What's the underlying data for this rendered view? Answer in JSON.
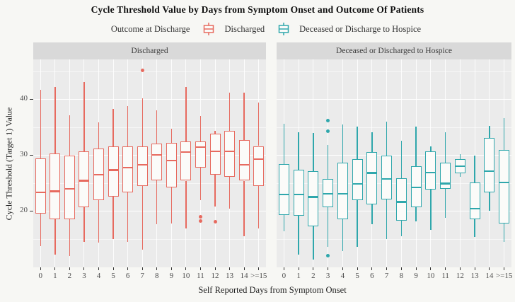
{
  "chart_data": {
    "type": "boxplot",
    "title": "Cycle Threshold Value by Days from Symptom Onset and Outcome Of Patients",
    "legend_title": "Outcome at Discharge",
    "legend_position": "top",
    "legend": [
      {
        "label": "Discharged",
        "color": "#E76A5F"
      },
      {
        "label": "Deceased or Discharge to Hospice",
        "color": "#2FA7AC"
      }
    ],
    "xlabel": "Self Reported Days from Symptom Onset",
    "ylabel": "Cycle Threshold (Target 1) Value",
    "categories": [
      "0",
      "1",
      "2",
      "3",
      "4",
      "5",
      "6",
      "7",
      "8",
      "9",
      "10",
      "11",
      "12",
      "13",
      "14",
      ">=15"
    ],
    "y_ticks": [
      20,
      30,
      40
    ],
    "y_minor_ticks": [
      15,
      25,
      35,
      45
    ],
    "ylim": [
      9.9,
      47.1
    ],
    "grid": true,
    "colors": {
      "figure_bg": "#F7F7F4",
      "panel_bg": "#EBEBEB",
      "strip_bg": "#D9D9D9",
      "box_fill": "#FBFBF9",
      "tick": "#333333",
      "tick_label": "#4d4d4d"
    },
    "facets": [
      {
        "label": "Discharged",
        "color": "#E76A5F",
        "boxes": [
          {
            "min": 13.7,
            "q1": 19.5,
            "med": 23.3,
            "q3": 29.4,
            "max": 41.6,
            "outliers": []
          },
          {
            "min": 12.2,
            "q1": 18.5,
            "med": 23.5,
            "q3": 30.3,
            "max": 42.2,
            "outliers": []
          },
          {
            "min": 11.9,
            "q1": 18.5,
            "med": 23.9,
            "q3": 29.9,
            "max": 37.1,
            "outliers": []
          },
          {
            "min": 14.5,
            "q1": 20.6,
            "med": 25.4,
            "q3": 30.7,
            "max": 43.0,
            "outliers": []
          },
          {
            "min": 14.3,
            "q1": 21.9,
            "med": 26.5,
            "q3": 31.1,
            "max": 35.8,
            "outliers": []
          },
          {
            "min": 14.9,
            "q1": 22.5,
            "med": 27.3,
            "q3": 31.5,
            "max": 38.3,
            "outliers": []
          },
          {
            "min": 14.5,
            "q1": 23.3,
            "med": 27.7,
            "q3": 31.5,
            "max": 38.7,
            "outliers": []
          },
          {
            "min": 13.0,
            "q1": 24.5,
            "med": 28.2,
            "q3": 31.5,
            "max": 40.2,
            "outliers": [
              45.2
            ]
          },
          {
            "min": 17.6,
            "q1": 25.5,
            "med": 30.0,
            "q3": 32.1,
            "max": 38.0,
            "outliers": []
          },
          {
            "min": 17.8,
            "q1": 24.2,
            "med": 29.0,
            "q3": 32.2,
            "max": 34.7,
            "outliers": []
          },
          {
            "min": 16.8,
            "q1": 25.4,
            "med": 30.5,
            "q3": 32.4,
            "max": 42.2,
            "outliers": []
          },
          {
            "min": 21.9,
            "q1": 27.7,
            "med": 31.4,
            "q3": 32.4,
            "max": 37.0,
            "outliers": [
              19.0,
              18.2
            ]
          },
          {
            "min": 20.8,
            "q1": 26.5,
            "med": 30.7,
            "q3": 33.8,
            "max": 34.3,
            "outliers": [
              18.1
            ]
          },
          {
            "min": 20.4,
            "q1": 26.1,
            "med": 30.7,
            "q3": 34.3,
            "max": 41.2,
            "outliers": []
          },
          {
            "min": 15.5,
            "q1": 25.4,
            "med": 28.2,
            "q3": 32.7,
            "max": 41.1,
            "outliers": []
          },
          {
            "min": 16.8,
            "q1": 24.4,
            "med": 29.3,
            "q3": 31.6,
            "max": 39.4,
            "outliers": []
          }
        ]
      },
      {
        "label": "Deceased or Discharged to Hospice",
        "color": "#2FA7AC",
        "boxes": [
          {
            "min": 16.4,
            "q1": 19.3,
            "med": 22.9,
            "q3": 28.4,
            "max": 35.6,
            "outliers": []
          },
          {
            "min": 12.2,
            "q1": 19.1,
            "med": 22.9,
            "q3": 27.3,
            "max": 34.1,
            "outliers": []
          },
          {
            "min": 11.3,
            "q1": 17.2,
            "med": 22.5,
            "q3": 27.1,
            "max": 33.9,
            "outliers": []
          },
          {
            "min": 13.6,
            "q1": 20.6,
            "med": 23.1,
            "q3": 25.7,
            "max": 31.8,
            "outliers": [
              36.1,
              34.3,
              12.0
            ]
          },
          {
            "min": 12.8,
            "q1": 18.5,
            "med": 23.1,
            "q3": 28.6,
            "max": 35.4,
            "outliers": []
          },
          {
            "min": 13.6,
            "q1": 21.9,
            "med": 24.8,
            "q3": 29.2,
            "max": 35.1,
            "outliers": []
          },
          {
            "min": 17.6,
            "q1": 21.2,
            "med": 26.8,
            "q3": 30.5,
            "max": 34.1,
            "outliers": []
          },
          {
            "min": 14.9,
            "q1": 22.1,
            "med": 25.7,
            "q3": 29.9,
            "max": 36.0,
            "outliers": []
          },
          {
            "min": 15.5,
            "q1": 18.3,
            "med": 21.6,
            "q3": 25.9,
            "max": 32.6,
            "outliers": []
          },
          {
            "min": 18.1,
            "q1": 20.6,
            "med": 24.2,
            "q3": 28.0,
            "max": 35.1,
            "outliers": []
          },
          {
            "min": 16.6,
            "q1": 23.8,
            "med": 26.9,
            "q3": 30.7,
            "max": 31.6,
            "outliers": []
          },
          {
            "min": 18.7,
            "q1": 24.0,
            "med": 24.9,
            "q3": 28.6,
            "max": 34.1,
            "outliers": []
          },
          {
            "min": 26.1,
            "q1": 26.7,
            "med": 28.0,
            "q3": 29.2,
            "max": 30.1,
            "outliers": []
          },
          {
            "min": 15.3,
            "q1": 18.5,
            "med": 20.4,
            "q3": 25.1,
            "max": 29.9,
            "outliers": []
          },
          {
            "min": 20.0,
            "q1": 23.3,
            "med": 27.1,
            "q3": 33.0,
            "max": 35.2,
            "outliers": []
          },
          {
            "min": 14.5,
            "q1": 17.8,
            "med": 25.1,
            "q3": 30.9,
            "max": 36.6,
            "outliers": []
          }
        ]
      }
    ]
  }
}
